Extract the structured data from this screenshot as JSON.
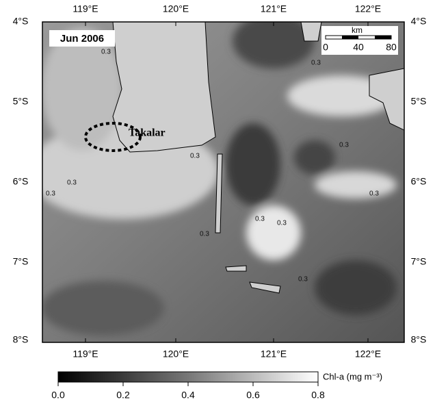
{
  "map": {
    "title": "Jun 2006",
    "lon_labels": [
      "119°E",
      "120°E",
      "121°E",
      "122°E"
    ],
    "lat_labels": [
      "4°S",
      "5°S",
      "6°S",
      "7°S",
      "8°S"
    ],
    "place_label": "Takalar",
    "scale_bar": {
      "unit": "km",
      "ticks": [
        "0",
        "40",
        "80"
      ]
    },
    "contour_labels": [
      "0.3",
      "0.3",
      "0.3",
      "0.3",
      "0.3",
      "0.3",
      "0.3",
      "0.3",
      "0.3",
      "0.3",
      "0.3"
    ],
    "colorbar": {
      "label": "Chl-a (mg m⁻³)",
      "ticks": [
        "0.0",
        "0.2",
        "0.4",
        "0.6",
        "0.8"
      ]
    }
  }
}
